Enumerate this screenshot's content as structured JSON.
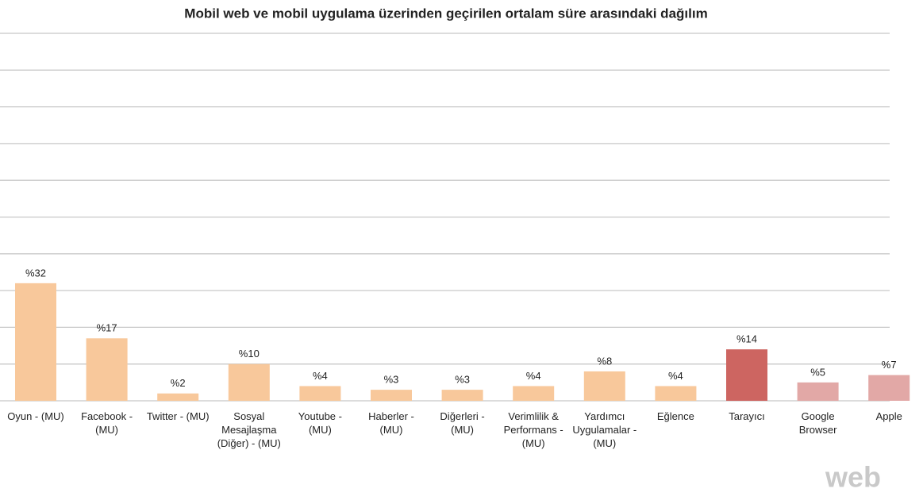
{
  "chart_data": {
    "type": "bar",
    "title": "Mobil web ve mobil uygulama üzerinden geçirilen ortalam süre arasındaki dağılım",
    "categories": [
      "Oyun - (MU)",
      "Facebook - (MU)",
      "Twitter - (MU)",
      "Sosyal Mesajlaşma (Diğer) - (MU)",
      "Youtube - (MU)",
      "Haberler - (MU)",
      "Diğerleri - (MU)",
      "Verimlilik & Performans - (MU)",
      "Yardımcı Uygulamalar - (MU)",
      "Eğlence",
      "Tarayıcı",
      "Google Browser",
      "Apple"
    ],
    "values": [
      32,
      17,
      2,
      10,
      4,
      3,
      3,
      4,
      8,
      4,
      14,
      5,
      7
    ],
    "value_labels": [
      "%32",
      "%17",
      "%2",
      "%10",
      "%4",
      "%3",
      "%3",
      "%4",
      "%8",
      "%4",
      "%14",
      "%5",
      "%7"
    ],
    "colors": [
      "#f8c89b",
      "#f8c89b",
      "#f8c89b",
      "#f8c89b",
      "#f8c89b",
      "#f8c89b",
      "#f8c89b",
      "#f8c89b",
      "#f8c89b",
      "#f8c89b",
      "#cd6561",
      "#e2a8a6",
      "#e2a8a6"
    ],
    "ylim": [
      0,
      100
    ],
    "yticks": [
      0,
      10,
      20,
      30,
      40,
      50,
      60,
      70,
      80,
      90,
      100
    ],
    "grid": true,
    "watermark": "web"
  }
}
